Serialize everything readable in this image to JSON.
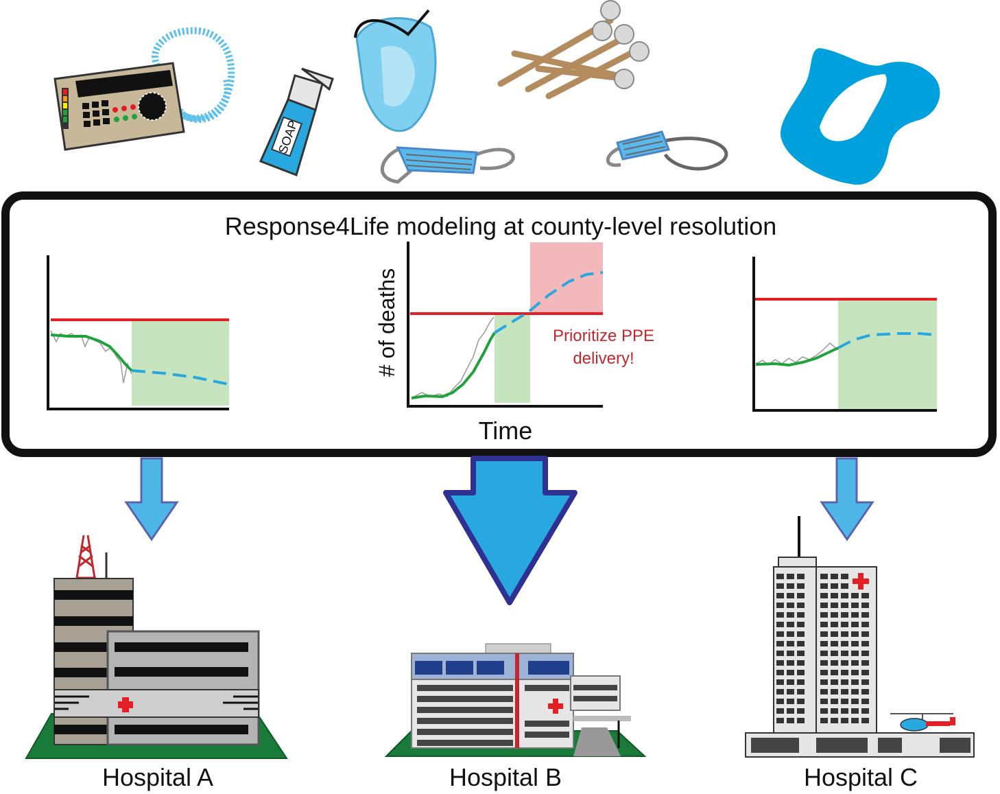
{
  "title": "Response4Life modeling at county-level resolution",
  "panels": [
    {
      "id": "left",
      "ylabel": "",
      "xlabel": "",
      "annotation": ""
    },
    {
      "id": "middle",
      "ylabel": "# of deaths",
      "xlabel": "Time",
      "annotation_line1": "Prioritize PPE",
      "annotation_line2": "delivery!"
    },
    {
      "id": "right",
      "ylabel": "",
      "xlabel": "",
      "annotation": ""
    }
  ],
  "hospitals": [
    {
      "label": "Hospital A"
    },
    {
      "label": "Hospital B"
    },
    {
      "label": "Hospital C"
    }
  ],
  "supplies": {
    "soap_label": "SOAP"
  },
  "colors": {
    "threshold": "#e31e24",
    "model_fit": "#1fa23b",
    "forecast": "#29a8e0",
    "safe_zone": "#c6e5bf",
    "danger_zone": "#f2b8bb",
    "arrow_fill": "#29a8e0",
    "arrow_stroke": "#2e3192",
    "warning_text": "#c1272d"
  },
  "icons": [
    "ventilator-icon",
    "soap-bottle-icon",
    "face-shield-icon",
    "surgical-mask-icon",
    "swab-icon",
    "gown-icon",
    "hospital-building-icon",
    "helicopter-icon",
    "down-arrow-icon"
  ]
}
